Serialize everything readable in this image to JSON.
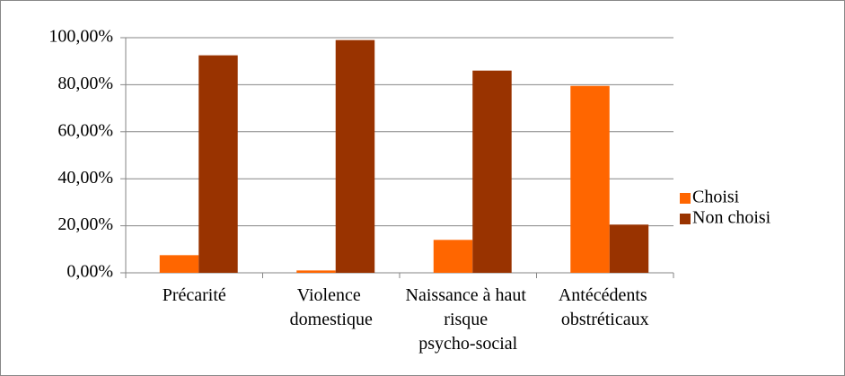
{
  "chart_data": {
    "type": "bar",
    "categories": [
      "Précarité",
      "Violence domestique",
      "Naissance à haut risque psycho-social",
      "Antécédents obstréticaux"
    ],
    "series": [
      {
        "name": "Choisi",
        "color": "#ff6600",
        "values": [
          7.5,
          1,
          14,
          79.5
        ]
      },
      {
        "name": "Non choisi",
        "color": "#993300",
        "values": [
          92.5,
          99,
          86,
          20.5
        ]
      }
    ],
    "ylim": [
      0,
      100
    ],
    "yticks": [
      {
        "value": 0,
        "label": "0,00%"
      },
      {
        "value": 20,
        "label": "20,00%"
      },
      {
        "value": 40,
        "label": "40,00%"
      },
      {
        "value": 60,
        "label": "60,00%"
      },
      {
        "value": 80,
        "label": "80,00%"
      },
      {
        "value": 100,
        "label": "100,00%"
      }
    ],
    "grid": true,
    "legend": "right"
  }
}
